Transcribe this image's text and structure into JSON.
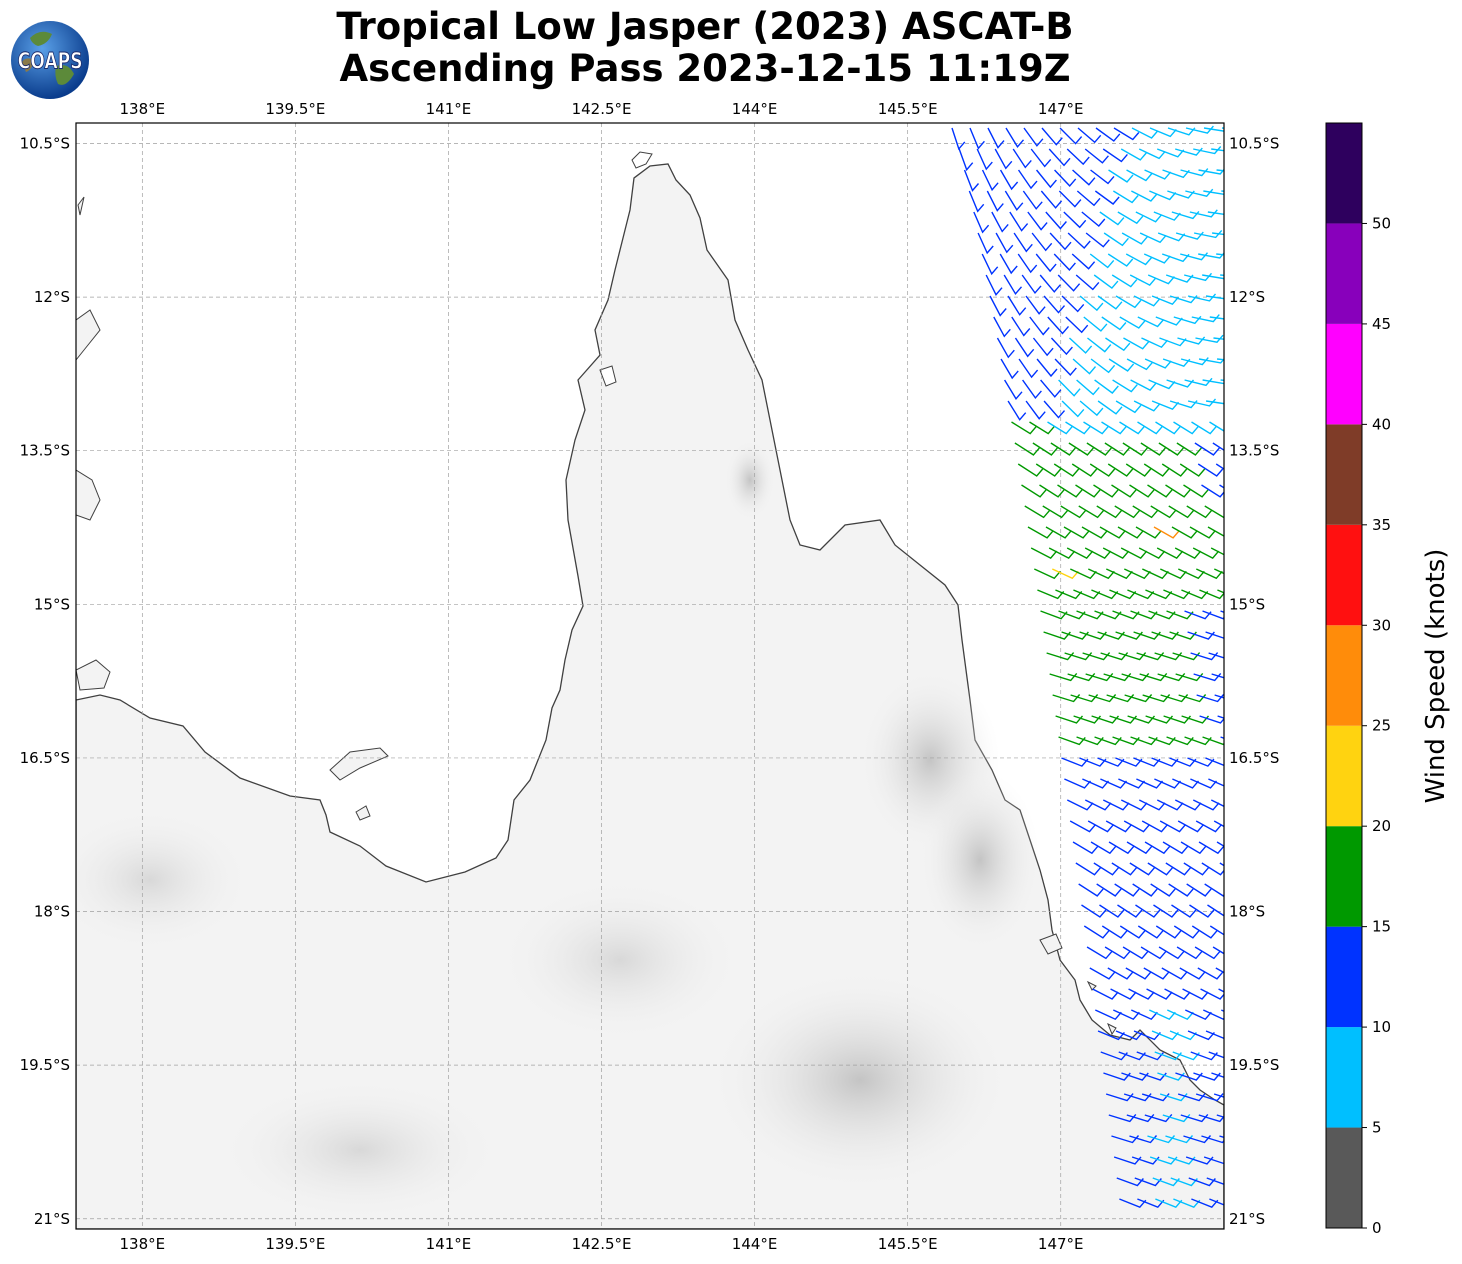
{
  "title": {
    "line1": "Tropical Low Jasper (2023) ASCAT-B",
    "line2": "Ascending Pass 2023-12-15 11:19Z"
  },
  "logo": {
    "text": "COAPS",
    "icon": "globe-logo-icon"
  },
  "map": {
    "lon_range": [
      137.35,
      148.6
    ],
    "lat_range": [
      -21.1,
      -10.3
    ],
    "lon_ticks": [
      "138°E",
      "139.5°E",
      "141°E",
      "142.5°E",
      "144°E",
      "145.5°E",
      "147°E"
    ],
    "lon_tick_values": [
      138,
      139.5,
      141,
      142.5,
      144,
      145.5,
      147
    ],
    "lat_ticks": [
      "10.5°S",
      "12°S",
      "13.5°S",
      "15°S",
      "16.5°S",
      "18°S",
      "19.5°S",
      "21°S"
    ],
    "lat_tick_values": [
      -10.5,
      -12,
      -13.5,
      -15,
      -16.5,
      -18,
      -19.5,
      -21
    ],
    "grid": true
  },
  "colorbar": {
    "label": "Wind Speed (knots)",
    "tick_labels": [
      "0",
      "5",
      "10",
      "15",
      "20",
      "25",
      "30",
      "35",
      "40",
      "45",
      "50"
    ],
    "bins": [
      {
        "from": 0,
        "to": 5,
        "color": "#595959"
      },
      {
        "from": 5,
        "to": 10,
        "color": "#00bfff"
      },
      {
        "from": 10,
        "to": 15,
        "color": "#0033ff"
      },
      {
        "from": 15,
        "to": 20,
        "color": "#009900"
      },
      {
        "from": 20,
        "to": 25,
        "color": "#ffd310"
      },
      {
        "from": 25,
        "to": 30,
        "color": "#ff8c0a"
      },
      {
        "from": 30,
        "to": 35,
        "color": "#ff1010"
      },
      {
        "from": 35,
        "to": 40,
        "color": "#7f3c28"
      },
      {
        "from": 40,
        "to": 45,
        "color": "#ff00ff"
      },
      {
        "from": 45,
        "to": 50,
        "color": "#8800bb"
      },
      {
        "from": 50,
        "to": 55,
        "color": "#2e005e"
      }
    ]
  },
  "wind_colors": {
    "calm_5_10": "#00bfff",
    "moderate_10_15": "#0033ff",
    "fresh_15_20": "#009900",
    "strong_20_25": "#ffd310",
    "gale_25_30": "#ff8c0a"
  }
}
